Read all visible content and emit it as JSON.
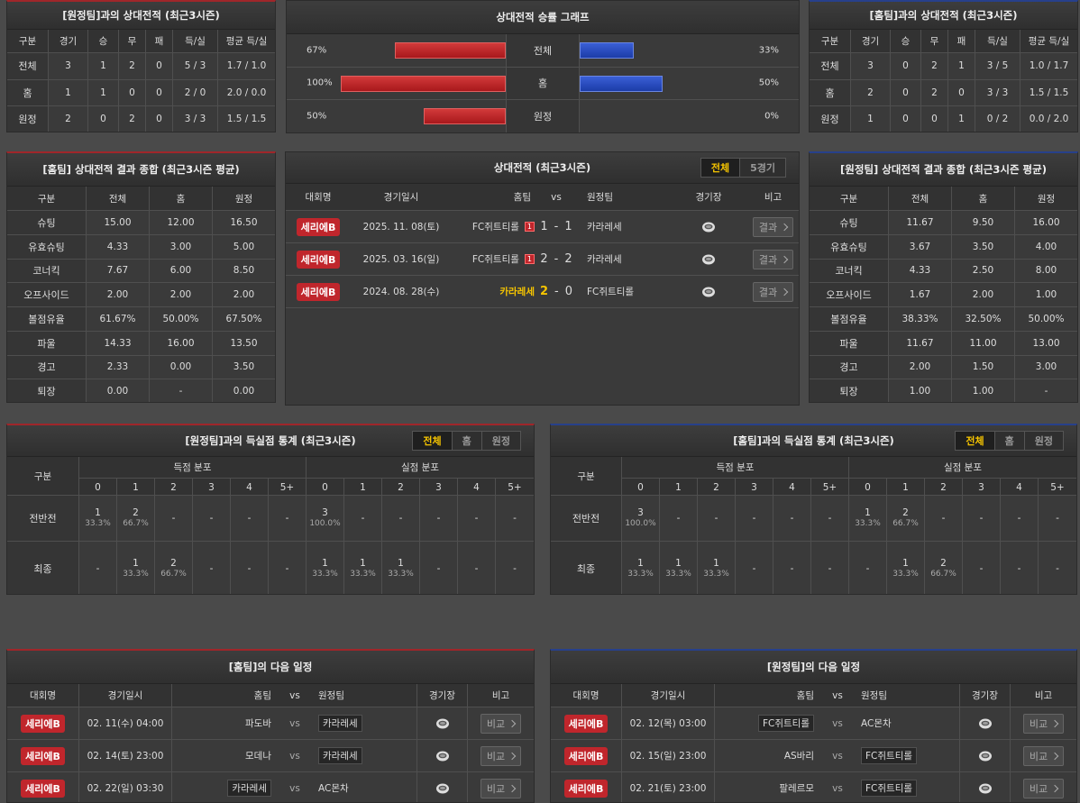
{
  "h2h_away": {
    "title": "[원정팀]과의 상대전적 (최근3시즌)",
    "header": [
      "구분",
      "경기",
      "승",
      "무",
      "패",
      "득/실",
      "평균 득/실"
    ],
    "rows": [
      [
        "전체",
        "3",
        "1",
        "2",
        "0",
        "5 / 3",
        "1.7 / 1.0"
      ],
      [
        "홈",
        "1",
        "1",
        "0",
        "0",
        "2 / 0",
        "2.0 / 0.0"
      ],
      [
        "원정",
        "2",
        "0",
        "2",
        "0",
        "3 / 3",
        "1.5 / 1.5"
      ]
    ]
  },
  "winrate_graph": {
    "title": "상대전적 승률 그래프",
    "rows": [
      {
        "label": "전체",
        "home": {
          "value": 67,
          "label": "67%"
        },
        "away": {
          "value": 33,
          "label": "33%"
        }
      },
      {
        "label": "홈",
        "home": {
          "value": 100,
          "label": "100%"
        },
        "away": {
          "value": 50,
          "label": "50%"
        }
      },
      {
        "label": "원정",
        "home": {
          "value": 50,
          "label": "50%"
        },
        "away": {
          "value": 0,
          "label": "0%"
        }
      }
    ]
  },
  "h2h_home": {
    "title": "[홈팀]과의 상대전적 (최근3시즌)",
    "header": [
      "구분",
      "경기",
      "승",
      "무",
      "패",
      "득/실",
      "평균 득/실"
    ],
    "rows": [
      [
        "전체",
        "3",
        "0",
        "2",
        "1",
        "3 / 5",
        "1.0 / 1.7"
      ],
      [
        "홈",
        "2",
        "0",
        "2",
        "0",
        "3 / 3",
        "1.5 / 1.5"
      ],
      [
        "원정",
        "1",
        "0",
        "0",
        "1",
        "0 / 2",
        "0.0 / 2.0"
      ]
    ]
  },
  "summary_home": {
    "title": "[홈팀] 상대전적 결과 종합 (최근3시즌 평균)",
    "header": [
      "구분",
      "전체",
      "홈",
      "원정"
    ],
    "rows": [
      [
        "슈팅",
        "15.00",
        "12.00",
        "16.50"
      ],
      [
        "유효슈팅",
        "4.33",
        "3.00",
        "5.00"
      ],
      [
        "코너킥",
        "7.67",
        "6.00",
        "8.50"
      ],
      [
        "오프사이드",
        "2.00",
        "2.00",
        "2.00"
      ],
      [
        "볼점유율",
        "61.67%",
        "50.00%",
        "67.50%"
      ],
      [
        "파울",
        "14.33",
        "16.00",
        "13.50"
      ],
      [
        "경고",
        "2.33",
        "0.00",
        "3.50"
      ],
      [
        "퇴장",
        "0.00",
        "-",
        "0.00"
      ]
    ]
  },
  "h2h_matches": {
    "title": "상대전적 (최근3시즌)",
    "tabs": [
      "전체",
      "5경기"
    ],
    "header": [
      "대회명",
      "경기일시",
      "홈팀",
      "vs",
      "원정팀",
      "경기장",
      "비고"
    ],
    "score_separator": "-",
    "button": "결과",
    "rows": [
      {
        "league": "세리에B",
        "date": "2025. 11. 08(토)",
        "home": "FC쥐트티롤",
        "home_badge": "1",
        "score_home": "1",
        "score_away": "1",
        "away": "카라레세"
      },
      {
        "league": "세리에B",
        "date": "2025. 03. 16(일)",
        "home": "FC쥐트티롤",
        "home_badge": "1",
        "score_home": "2",
        "score_away": "2",
        "away": "카라레세"
      },
      {
        "league": "세리에B",
        "date": "2024. 08. 28(수)",
        "home": "카라레세",
        "score_home": "2",
        "score_away": "0",
        "away": "FC쥐트티롤",
        "highlight_home": true
      }
    ]
  },
  "summary_away": {
    "title": "[원정팀] 상대전적 결과 종합 (최근3시즌 평균)",
    "header": [
      "구분",
      "전체",
      "홈",
      "원정"
    ],
    "rows": [
      [
        "슈팅",
        "11.67",
        "9.50",
        "16.00"
      ],
      [
        "유효슈팅",
        "3.67",
        "3.50",
        "4.00"
      ],
      [
        "코너킥",
        "4.33",
        "2.50",
        "8.00"
      ],
      [
        "오프사이드",
        "1.67",
        "2.00",
        "1.00"
      ],
      [
        "볼점유율",
        "38.33%",
        "32.50%",
        "50.00%"
      ],
      [
        "파울",
        "11.67",
        "11.00",
        "13.00"
      ],
      [
        "경고",
        "2.00",
        "1.50",
        "3.00"
      ],
      [
        "퇴장",
        "1.00",
        "1.00",
        "-"
      ]
    ]
  },
  "goals_away": {
    "title": "[원정팀]과의 득실점 통계 (최근3시즌)",
    "tabs": [
      "전체",
      "홈",
      "원정"
    ],
    "label_header": "구분",
    "groups": [
      "득점 분포",
      "실점 분포"
    ],
    "buckets": [
      "0",
      "1",
      "2",
      "3",
      "4",
      "5+"
    ],
    "rows": [
      {
        "label": "전반전",
        "scored": [
          {
            "count": "1",
            "pct": "33.3%"
          },
          {
            "count": "2",
            "pct": "66.7%"
          },
          "-",
          "-",
          "-",
          "-"
        ],
        "conceded": [
          {
            "count": "3",
            "pct": "100.0%"
          },
          "-",
          "-",
          "-",
          "-",
          "-"
        ]
      },
      {
        "label": "최종",
        "scored": [
          "-",
          {
            "count": "1",
            "pct": "33.3%"
          },
          {
            "count": "2",
            "pct": "66.7%"
          },
          "-",
          "-",
          "-"
        ],
        "conceded": [
          {
            "count": "1",
            "pct": "33.3%"
          },
          {
            "count": "1",
            "pct": "33.3%"
          },
          {
            "count": "1",
            "pct": "33.3%"
          },
          "-",
          "-",
          "-"
        ]
      }
    ]
  },
  "goals_home": {
    "title": "[홈팀]과의 득실점 통계 (최근3시즌)",
    "tabs": [
      "전체",
      "홈",
      "원정"
    ],
    "label_header": "구분",
    "groups": [
      "득점 분포",
      "실점 분포"
    ],
    "buckets": [
      "0",
      "1",
      "2",
      "3",
      "4",
      "5+"
    ],
    "rows": [
      {
        "label": "전반전",
        "scored": [
          {
            "count": "3",
            "pct": "100.0%"
          },
          "-",
          "-",
          "-",
          "-",
          "-"
        ],
        "conceded": [
          {
            "count": "1",
            "pct": "33.3%"
          },
          {
            "count": "2",
            "pct": "66.7%"
          },
          "-",
          "-",
          "-",
          "-"
        ]
      },
      {
        "label": "최종",
        "scored": [
          {
            "count": "1",
            "pct": "33.3%"
          },
          {
            "count": "1",
            "pct": "33.3%"
          },
          {
            "count": "1",
            "pct": "33.3%"
          },
          "-",
          "-",
          "-"
        ],
        "conceded": [
          "-",
          {
            "count": "1",
            "pct": "33.3%"
          },
          {
            "count": "2",
            "pct": "66.7%"
          },
          "-",
          "-",
          "-"
        ]
      }
    ]
  },
  "schedule_home": {
    "title": "[홈팀]의 다음 일정",
    "header": [
      "대회명",
      "경기일시",
      "홈팀",
      "vs",
      "원정팀",
      "경기장",
      "비고"
    ],
    "vs": "vs",
    "button": "비교",
    "rows": [
      {
        "league": "세리에B",
        "date": "02. 11(수) 04:00",
        "home": "파도바",
        "away": "카라레세",
        "boxed": "away"
      },
      {
        "league": "세리에B",
        "date": "02. 14(토) 23:00",
        "home": "모데나",
        "away": "카라레세",
        "boxed": "away"
      },
      {
        "league": "세리에B",
        "date": "02. 22(일) 03:30",
        "home": "카라레세",
        "away": "AC몬차",
        "boxed": "home"
      }
    ]
  },
  "schedule_away": {
    "title": "[원정팀]의 다음 일정",
    "header": [
      "대회명",
      "경기일시",
      "홈팀",
      "vs",
      "원정팀",
      "경기장",
      "비고"
    ],
    "vs": "vs",
    "button": "비교",
    "rows": [
      {
        "league": "세리에B",
        "date": "02. 12(목) 03:00",
        "home": "FC쥐트티롤",
        "away": "AC몬차",
        "boxed": "home"
      },
      {
        "league": "세리에B",
        "date": "02. 15(일) 23:00",
        "home": "AS바리",
        "away": "FC쥐트티롤",
        "boxed": "away"
      },
      {
        "league": "세리에B",
        "date": "02. 21(토) 23:00",
        "home": "팔레르모",
        "away": "FC쥐트티롤",
        "boxed": "away"
      }
    ]
  }
}
